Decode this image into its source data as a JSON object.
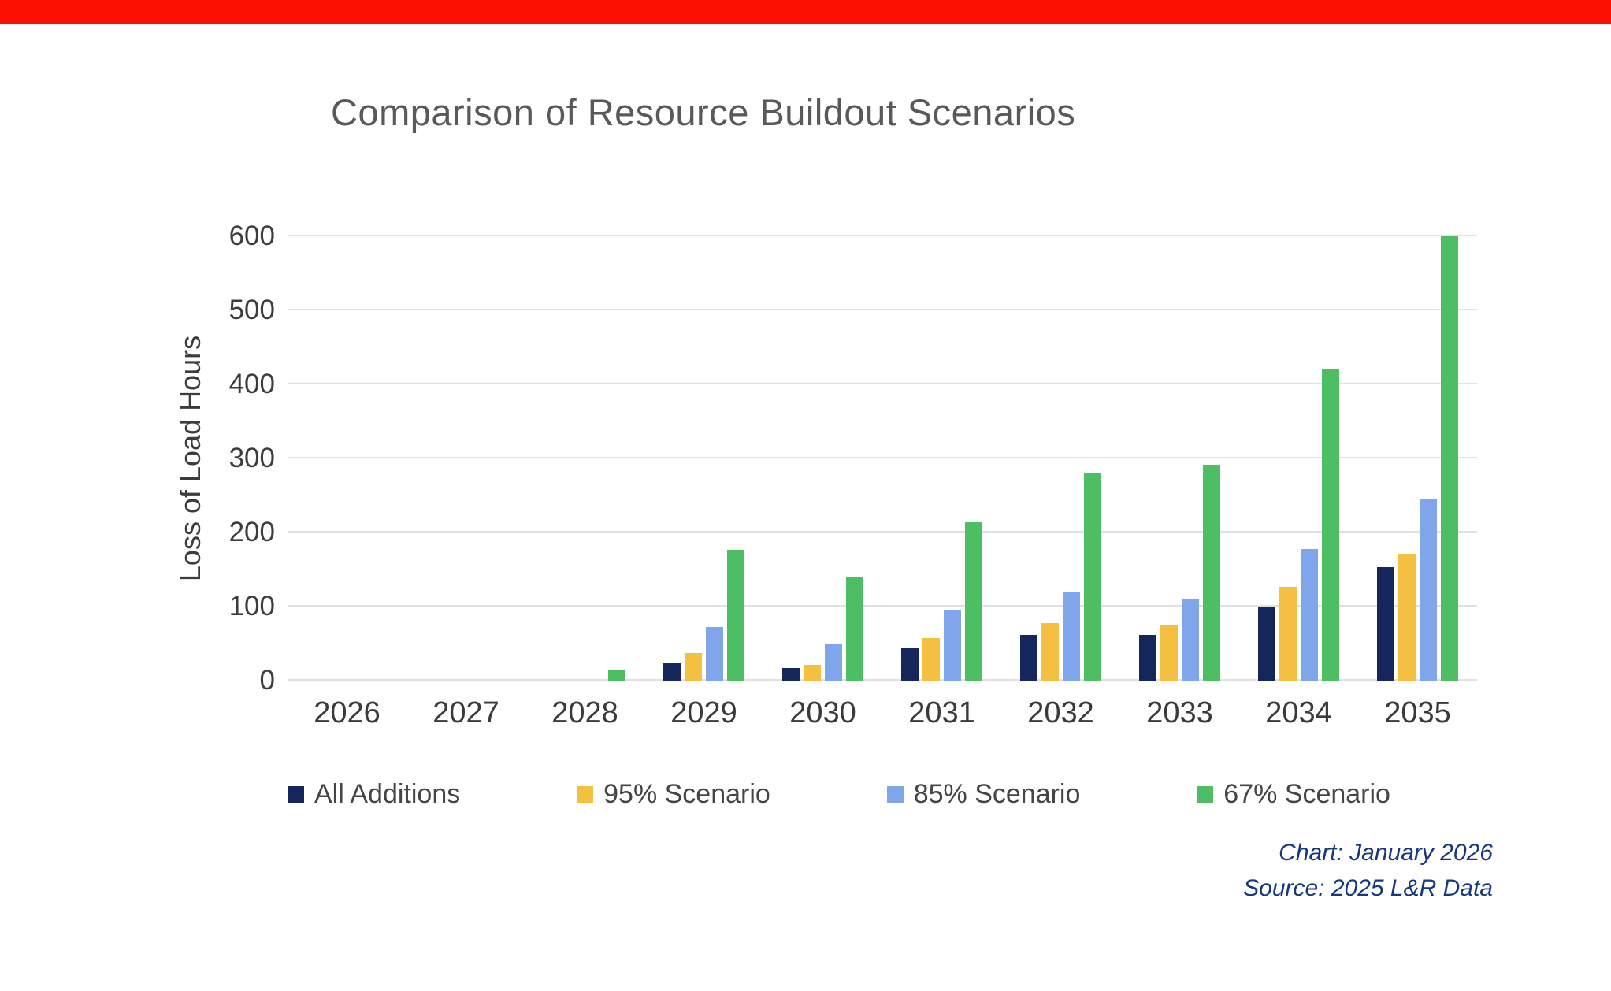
{
  "banner_color": "#fa0f00",
  "chart_data": {
    "type": "bar",
    "title": "Comparison of Resource Buildout Scenarios",
    "ylabel": "Loss of Load Hours",
    "xlabel": "",
    "ylim": [
      0,
      600
    ],
    "ytick_step": 100,
    "grid": true,
    "legend_position": "bottom",
    "categories": [
      "2026",
      "2027",
      "2028",
      "2029",
      "2030",
      "2031",
      "2032",
      "2033",
      "2034",
      "2035"
    ],
    "series": [
      {
        "name": "All Additions",
        "color": "#14265a",
        "values": [
          0,
          0,
          0,
          25,
          17,
          45,
          62,
          62,
          100,
          153
        ]
      },
      {
        "name": "95% Scenario",
        "color": "#f5bf42",
        "values": [
          0,
          0,
          0,
          37,
          21,
          57,
          78,
          76,
          127,
          171
        ]
      },
      {
        "name": "85% Scenario",
        "color": "#7fa6eb",
        "values": [
          0,
          0,
          0,
          72,
          49,
          96,
          119,
          110,
          178,
          246
        ]
      },
      {
        "name": "67% Scenario",
        "color": "#4dbe63",
        "values": [
          0,
          0,
          15,
          177,
          139,
          214,
          280,
          292,
          420,
          600
        ]
      }
    ]
  },
  "notes": {
    "chart": "Chart: January 2026",
    "source": "Source: 2025 L&R Data"
  }
}
